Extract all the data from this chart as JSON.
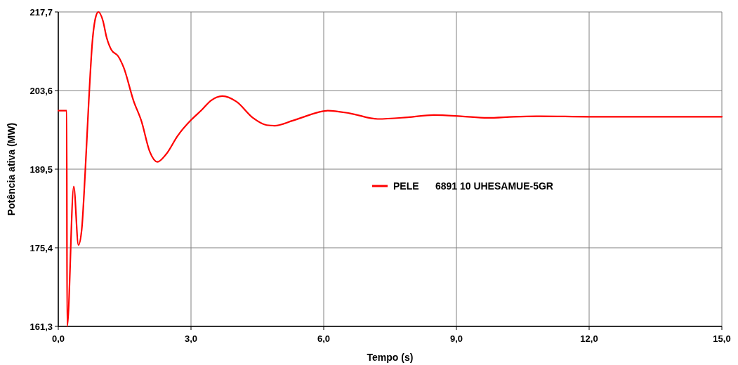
{
  "chart_data": {
    "type": "line",
    "xlabel": "Tempo (s)",
    "ylabel": "Potência ativa (MW)",
    "x": [
      0,
      0.19,
      0.2,
      0.35,
      0.455,
      0.53,
      0.61,
      0.69,
      0.77,
      0.85,
      0.905,
      1.01,
      1.09,
      1.2,
      1.35,
      1.48,
      1.7,
      1.88,
      2.07,
      2.24,
      2.44,
      2.7,
      3.0,
      3.24,
      3.45,
      3.71,
      4.03,
      4.4,
      4.71,
      4.89,
      5.3,
      5.99,
      6.09,
      6.6,
      7.22,
      7.9,
      8.49,
      9.1,
      9.7,
      10.3,
      10.9,
      12.0,
      13.5,
      15.0
    ],
    "series": [
      {
        "name": "PELE      6891 10 UHESAMUE-5GR",
        "color": "#ff0000",
        "values": [
          200.0,
          200.0,
          161.3,
          186.4,
          175.9,
          178.7,
          189.2,
          201.8,
          212.3,
          216.9,
          217.7,
          216.1,
          213.2,
          210.9,
          209.8,
          207.7,
          201.8,
          198.1,
          192.6,
          190.8,
          192.2,
          195.5,
          198.3,
          200.1,
          201.8,
          202.6,
          201.6,
          198.7,
          197.4,
          197.3,
          198.2,
          199.9,
          200.0,
          199.5,
          198.5,
          198.8,
          199.2,
          199.0,
          198.7,
          198.9,
          199.0,
          198.9,
          198.9,
          198.9
        ]
      }
    ],
    "xlim": [
      0,
      15
    ],
    "xticks": [
      {
        "value": 0,
        "label": "0,0"
      },
      {
        "value": 3,
        "label": "3,0"
      },
      {
        "value": 6,
        "label": "6,0"
      },
      {
        "value": 9,
        "label": "9,0"
      },
      {
        "value": 12,
        "label": "12,0"
      },
      {
        "value": 15,
        "label": "15,0"
      }
    ],
    "ylim": [
      161.3,
      217.7
    ],
    "yticks": [
      {
        "value": 161.3,
        "label": "161,3"
      },
      {
        "value": 175.4,
        "label": "175,4"
      },
      {
        "value": 189.5,
        "label": "189,5"
      },
      {
        "value": 203.6,
        "label": "203,6"
      },
      {
        "value": 217.7,
        "label": "217,7"
      }
    ],
    "grid": true,
    "legend": "center",
    "marker": "none",
    "line_style": "solid"
  }
}
